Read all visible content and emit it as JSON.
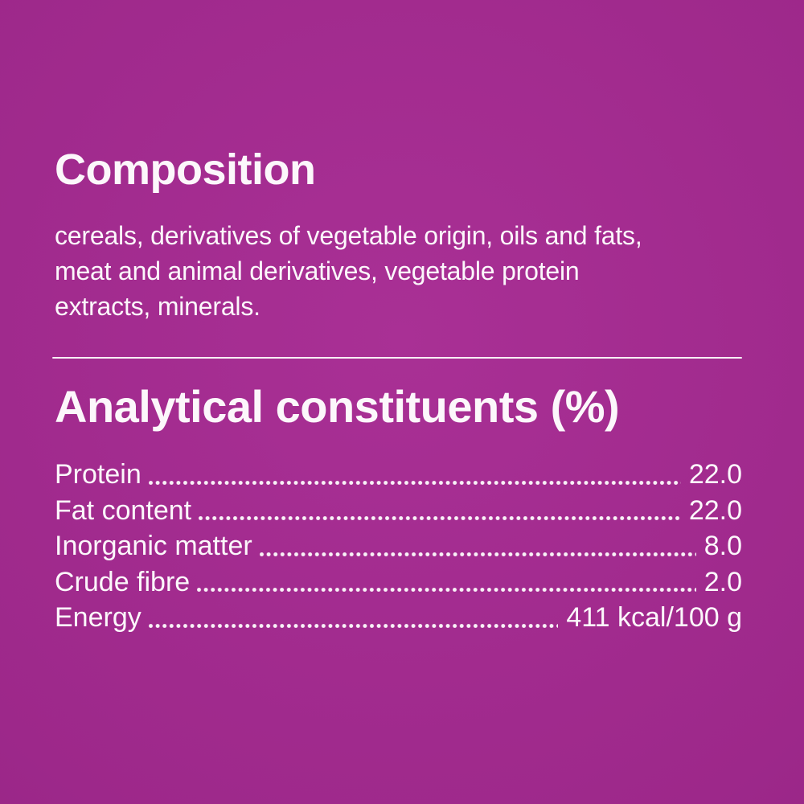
{
  "label": {
    "background": {
      "center_color": "#a93095",
      "mid_color": "#9d288a",
      "edge_color": "#8c1f7e"
    },
    "text_color": "#fcf7fb"
  },
  "composition": {
    "title": "Composition",
    "body_lines": [
      "cereals, derivatives of vegetable origin, oils and fats,",
      "meat and animal derivatives, vegetable protein",
      "extracts, minerals."
    ]
  },
  "analytical": {
    "title": "Analytical constituents (%)",
    "rows": [
      {
        "label": "Protein",
        "value": "22.0"
      },
      {
        "label": "Fat content",
        "value": "22.0"
      },
      {
        "label": "Inorganic matter",
        "value": "8.0"
      },
      {
        "label": "Crude fibre",
        "value": "2.0"
      },
      {
        "label": "Energy",
        "value": "411 kcal/100 g"
      }
    ]
  }
}
